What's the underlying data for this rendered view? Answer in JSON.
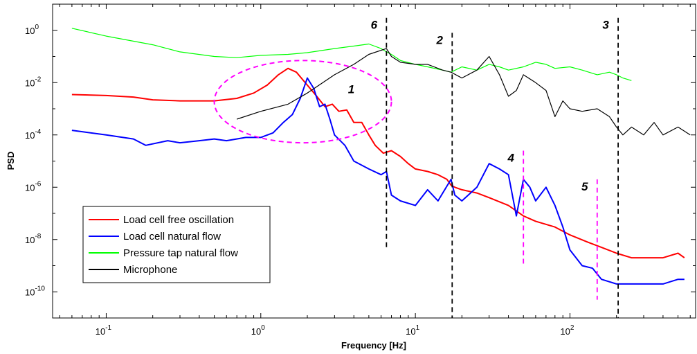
{
  "chart_data": {
    "type": "line",
    "title": "",
    "xlabel": "Frequency [Hz]",
    "ylabel": "PSD",
    "xscale": "log",
    "yscale": "log",
    "xlim": [
      0.045,
      650
    ],
    "ylim": [
      1e-11,
      10
    ],
    "grid": false,
    "legend_position": "bottom-left",
    "x_ticks": [
      {
        "value": 0.1,
        "base": "10",
        "exp": "-1"
      },
      {
        "value": 1,
        "base": "10",
        "exp": "0"
      },
      {
        "value": 10,
        "base": "10",
        "exp": "1"
      },
      {
        "value": 100,
        "base": "10",
        "exp": "2"
      }
    ],
    "y_ticks": [
      {
        "value": 1,
        "base": "10",
        "exp": "0"
      },
      {
        "value": 0.01,
        "base": "10",
        "exp": "-2"
      },
      {
        "value": 0.0001,
        "base": "10",
        "exp": "-4"
      },
      {
        "value": 1e-06,
        "base": "10",
        "exp": "-6"
      },
      {
        "value": 1e-08,
        "base": "10",
        "exp": "-8"
      },
      {
        "value": 1e-10,
        "base": "10",
        "exp": "-10"
      }
    ],
    "series": [
      {
        "name": "Load cell free oscillation",
        "color": "#ff0000",
        "x": [
          0.06,
          0.1,
          0.15,
          0.2,
          0.3,
          0.5,
          0.7,
          0.9,
          1.1,
          1.3,
          1.5,
          1.7,
          2.0,
          2.3,
          2.6,
          2.9,
          3.2,
          3.6,
          4.0,
          4.5,
          5.0,
          5.5,
          6.2,
          7,
          8,
          9,
          10,
          12,
          14,
          16,
          17,
          18,
          20,
          25,
          30,
          40,
          50,
          60,
          80,
          100,
          130,
          160,
          200,
          250,
          300,
          400,
          500,
          550
        ],
        "y": [
          0.0035,
          0.0032,
          0.0028,
          0.0022,
          0.002,
          0.002,
          0.0025,
          0.004,
          0.008,
          0.02,
          0.035,
          0.025,
          0.008,
          0.003,
          0.0012,
          0.0015,
          0.0008,
          0.0009,
          0.0003,
          0.0003,
          0.0001,
          4e-05,
          2e-05,
          2.5e-05,
          1.5e-05,
          8e-06,
          5e-06,
          4e-06,
          3e-06,
          2e-06,
          1.2e-06,
          1e-06,
          8e-07,
          6e-07,
          4e-07,
          2e-07,
          8e-08,
          5e-08,
          3e-08,
          1.5e-08,
          8e-09,
          5e-09,
          3e-09,
          2e-09,
          2e-09,
          2e-09,
          3e-09,
          2e-09
        ]
      },
      {
        "name": "Load cell natural flow",
        "color": "#0000ff",
        "x": [
          0.06,
          0.1,
          0.15,
          0.18,
          0.25,
          0.3,
          0.4,
          0.5,
          0.6,
          0.8,
          1.0,
          1.2,
          1.4,
          1.6,
          1.8,
          2.0,
          2.2,
          2.4,
          2.6,
          2.8,
          3.0,
          3.5,
          4.0,
          5.0,
          6.0,
          6.5,
          7.0,
          8.0,
          10,
          12,
          14,
          17,
          18,
          20,
          25,
          30,
          35,
          40,
          45,
          50,
          55,
          60,
          70,
          80,
          90,
          100,
          120,
          140,
          160,
          200,
          250,
          300,
          400,
          500,
          550
        ],
        "y": [
          0.00015,
          0.0001,
          7e-05,
          4e-05,
          6e-05,
          5e-05,
          6e-05,
          7e-05,
          6e-05,
          8e-05,
          8e-05,
          0.00012,
          0.0003,
          0.0006,
          0.0025,
          0.015,
          0.006,
          0.0012,
          0.0015,
          0.0004,
          0.0001,
          4e-05,
          1e-05,
          5e-06,
          3e-06,
          4e-06,
          5e-07,
          3e-07,
          2e-07,
          8e-07,
          3e-07,
          2e-06,
          5e-07,
          3e-07,
          1e-06,
          8e-06,
          5e-06,
          3e-06,
          8e-08,
          2e-06,
          1e-06,
          3e-07,
          1e-06,
          2e-07,
          3e-08,
          4e-09,
          1e-09,
          8e-10,
          3e-10,
          2e-10,
          2e-10,
          2e-10,
          2e-10,
          3e-10,
          3e-10
        ]
      },
      {
        "name": "Pressure tap natural flow",
        "color": "#00ff00",
        "x": [
          0.06,
          0.1,
          0.2,
          0.3,
          0.5,
          0.7,
          1.0,
          1.5,
          2.0,
          3.0,
          4.0,
          5.0,
          6.0,
          6.5,
          7.0,
          8.0,
          10,
          12,
          15,
          17,
          20,
          25,
          30,
          35,
          40,
          50,
          60,
          70,
          80,
          100,
          120,
          150,
          180,
          200,
          220,
          250
        ],
        "y": [
          1.2,
          0.6,
          0.28,
          0.15,
          0.1,
          0.09,
          0.11,
          0.12,
          0.14,
          0.2,
          0.25,
          0.3,
          0.2,
          0.15,
          0.12,
          0.07,
          0.05,
          0.04,
          0.03,
          0.025,
          0.04,
          0.03,
          0.05,
          0.04,
          0.03,
          0.04,
          0.06,
          0.05,
          0.035,
          0.04,
          0.03,
          0.02,
          0.025,
          0.02,
          0.015,
          0.012
        ]
      },
      {
        "name": "Microphone",
        "color": "#000000",
        "x": [
          0.7,
          1.0,
          1.5,
          2.0,
          3.0,
          4.0,
          5.0,
          6.5,
          7.0,
          8.0,
          10,
          12,
          15,
          17,
          20,
          25,
          30,
          35,
          40,
          45,
          50,
          60,
          70,
          80,
          90,
          100,
          120,
          150,
          180,
          200,
          220,
          250,
          300,
          350,
          400,
          500,
          600
        ],
        "y": [
          0.0004,
          0.0008,
          0.0015,
          0.004,
          0.02,
          0.05,
          0.12,
          0.2,
          0.1,
          0.06,
          0.05,
          0.05,
          0.03,
          0.025,
          0.015,
          0.03,
          0.1,
          0.02,
          0.003,
          0.005,
          0.02,
          0.01,
          0.005,
          0.0005,
          0.002,
          0.001,
          0.0008,
          0.001,
          0.0005,
          0.0002,
          0.0001,
          0.0002,
          0.0001,
          0.0003,
          0.0001,
          0.0002,
          0.0001
        ]
      }
    ],
    "vertical_lines": [
      {
        "label": "6",
        "x": 6.5,
        "color": "#000000",
        "from": 5e-09,
        "to": 3
      },
      {
        "label": "2",
        "x": 17.3,
        "color": "#000000",
        "from": 1e-11,
        "to": 0.8
      },
      {
        "label": "3",
        "x": 205,
        "color": "#000000",
        "from": 1e-11,
        "to": 3
      },
      {
        "label": "4",
        "x": 50,
        "color": "#ff00ff",
        "from": 1e-09,
        "to": 2.5e-05
      },
      {
        "label": "5",
        "x": 150,
        "color": "#ff00ff",
        "from": 5e-11,
        "to": 2e-06
      }
    ],
    "ellipse": {
      "label": "1",
      "color": "#ff00ff",
      "x_range": [
        0.5,
        7
      ],
      "y_range": [
        5e-05,
        0.07
      ]
    }
  }
}
